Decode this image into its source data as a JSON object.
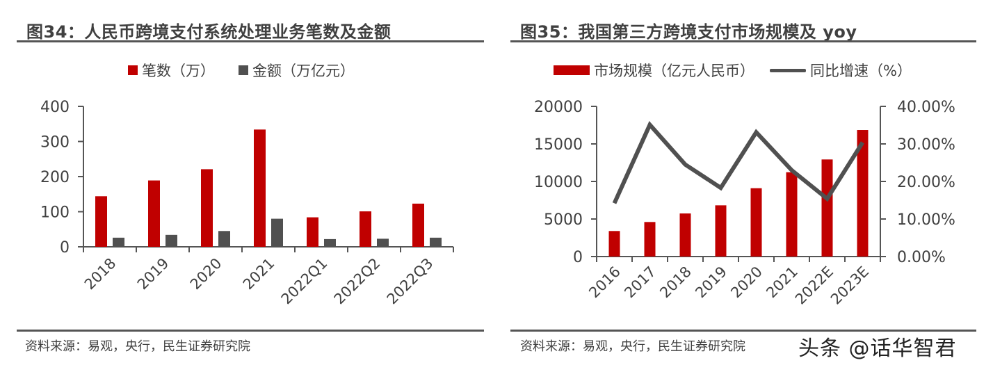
{
  "left": {
    "title": "图34：人民币跨境支付系统处理业务笔数及金额",
    "legend": [
      {
        "label": "笔数（万）",
        "color": "#C00000"
      },
      {
        "label": "金额（万亿元）",
        "color": "#505050"
      }
    ],
    "source": "资料来源：易观，央行，民生证券研究院"
  },
  "right": {
    "title": "图35：我国第三方跨境支付市场规模及 yoy",
    "legend": [
      {
        "label": "市场规模（亿元人民币）",
        "color": "#C00000"
      },
      {
        "label": "同比增速（%）",
        "color": "#505050"
      }
    ],
    "source": "资料来源：易观，央行，民生证券研究院"
  },
  "watermark": "头条 @话华智君",
  "chart_data": [
    {
      "type": "bar",
      "title": "图34：人民币跨境支付系统处理业务笔数及金额",
      "categories": [
        "2018",
        "2019",
        "2020",
        "2021",
        "2022Q1",
        "2022Q2",
        "2022Q3"
      ],
      "series": [
        {
          "name": "笔数（万）",
          "color": "#C00000",
          "values": [
            144,
            189,
            221,
            334,
            84,
            101,
            123
          ]
        },
        {
          "name": "金额（万亿元）",
          "color": "#505050",
          "values": [
            26,
            34,
            45,
            80,
            22,
            23,
            26
          ]
        }
      ],
      "xlabel": "",
      "ylabel": "",
      "ylim": [
        0,
        400
      ],
      "yticks": [
        0,
        100,
        200,
        300,
        400
      ],
      "grid": false,
      "legend_position": "top"
    },
    {
      "type": "bar+line",
      "title": "图35：我国第三方跨境支付市场规模及 yoy",
      "categories": [
        "2016",
        "2017",
        "2018",
        "2019",
        "2020",
        "2021",
        "2022E",
        "2023E"
      ],
      "series": [
        {
          "name": "市场规模（亿元人民币）",
          "type": "bar",
          "axis": "left",
          "color": "#C00000",
          "values": [
            3400,
            4600,
            5740,
            6820,
            9100,
            11230,
            12930,
            16850
          ]
        },
        {
          "name": "同比增速（%）",
          "type": "line",
          "axis": "right",
          "color": "#505050",
          "values": [
            14.2,
            35.1,
            24.5,
            18.3,
            33.1,
            23.0,
            15.4,
            30.4
          ]
        }
      ],
      "xlabel": "",
      "ylabel": "",
      "ylim": [
        0,
        20000
      ],
      "yticks": [
        0,
        5000,
        10000,
        15000,
        20000
      ],
      "y2lim": [
        0,
        40
      ],
      "y2ticks": [
        "0.00%",
        "10.00%",
        "20.00%",
        "30.00%",
        "40.00%"
      ],
      "grid": false,
      "legend_position": "top"
    }
  ]
}
